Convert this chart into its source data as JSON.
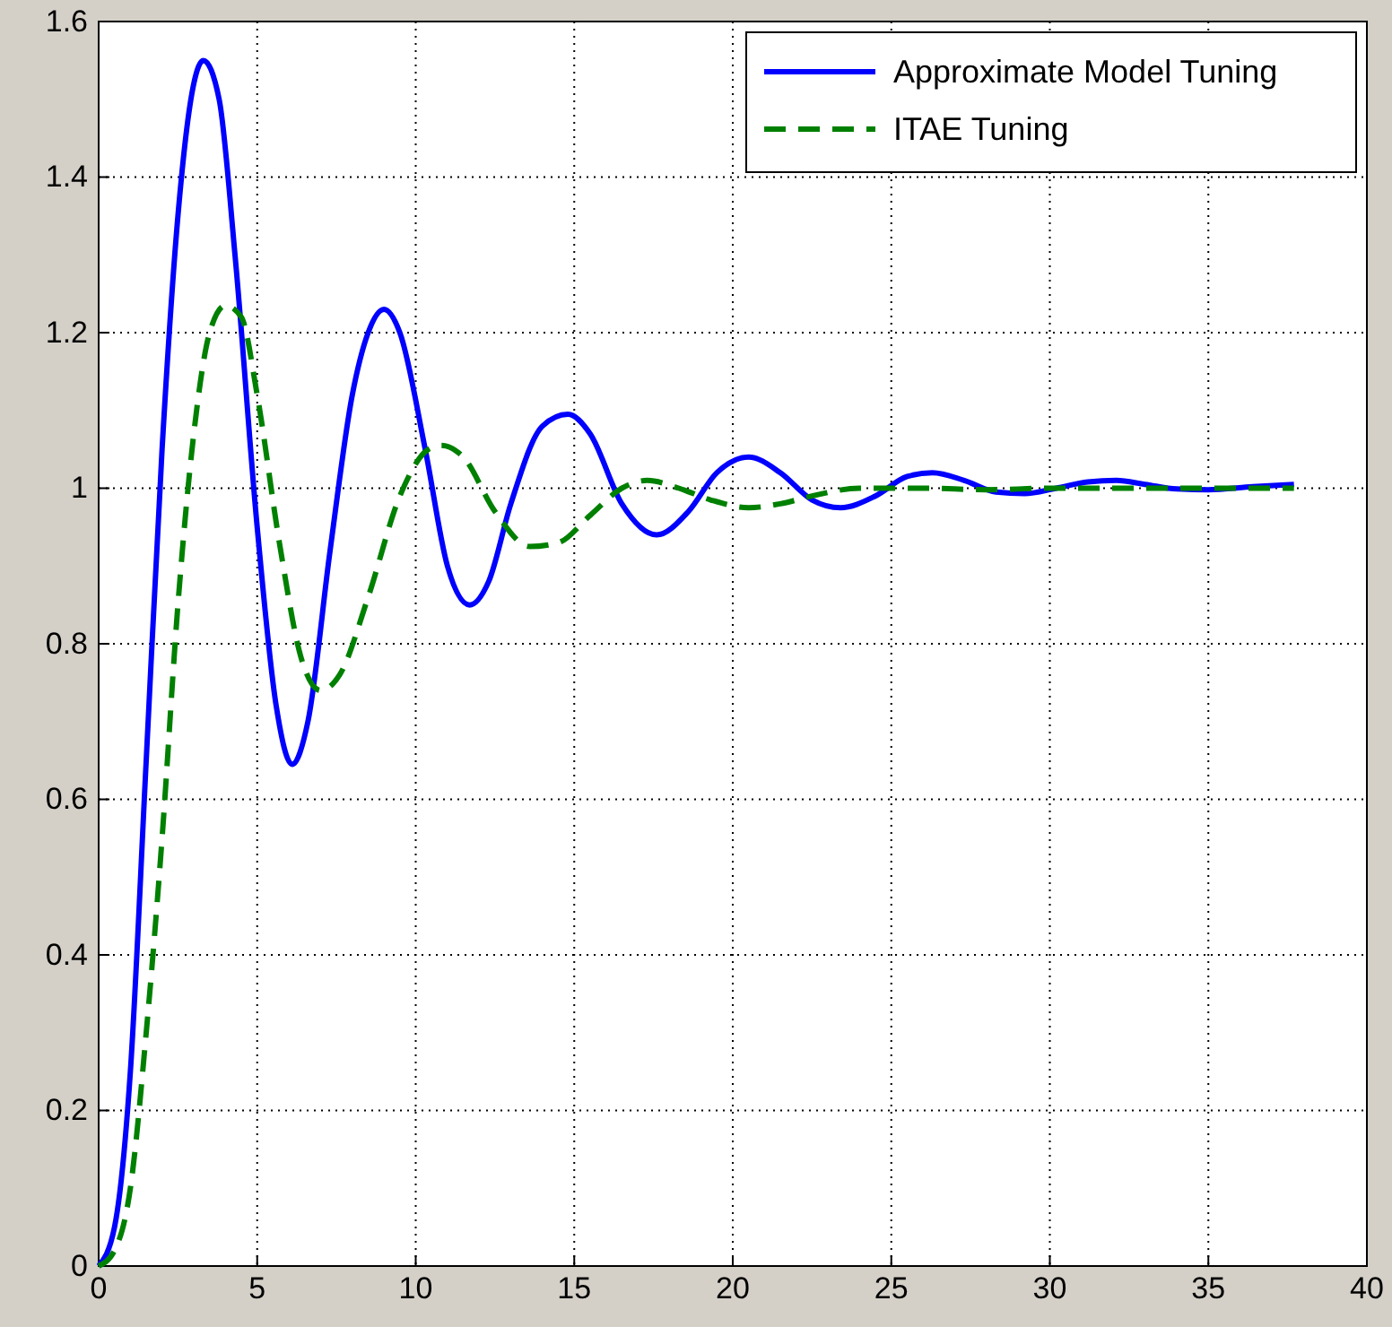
{
  "chart_data": {
    "type": "line",
    "xlim": [
      0,
      40
    ],
    "xticks": [
      0,
      5,
      10,
      15,
      20,
      25,
      30,
      35,
      40
    ],
    "ylim": [
      0,
      1.6
    ],
    "yticks": [
      0,
      0.2,
      0.4,
      0.6,
      0.8,
      1,
      1.2,
      1.4,
      1.6
    ],
    "grid": true,
    "legend": "top right",
    "series": [
      {
        "name": "Approximate Model Tuning",
        "color": "#0000ff",
        "line_style": "solid",
        "x": [
          0,
          0.5,
          1,
          1.5,
          2,
          2.5,
          3,
          3.3,
          3.8,
          4.3,
          5,
          5.6,
          6.1,
          6.6,
          7.3,
          8,
          8.5,
          9,
          9.5,
          10.3,
          11,
          11.7,
          12.3,
          13,
          14,
          14.8,
          15.5,
          16.5,
          17.6,
          18.6,
          19.5,
          20.5,
          21.5,
          22.5,
          23.4,
          24.5,
          25.5,
          26.3,
          27.3,
          28.3,
          29.2,
          30.2,
          31.2,
          32.1,
          33,
          34,
          35,
          36.4,
          37.7
        ],
        "values": [
          0,
          0.05,
          0.25,
          0.65,
          1.05,
          1.35,
          1.52,
          1.55,
          1.5,
          1.3,
          0.95,
          0.72,
          0.645,
          0.7,
          0.92,
          1.12,
          1.2,
          1.23,
          1.2,
          1.05,
          0.9,
          0.85,
          0.88,
          0.98,
          1.08,
          1.095,
          1.07,
          0.98,
          0.94,
          0.97,
          1.02,
          1.04,
          1.02,
          0.985,
          0.975,
          0.99,
          1.015,
          1.02,
          1.01,
          0.995,
          0.993,
          1,
          1.008,
          1.01,
          1.005,
          0.999,
          0.998,
          1.002,
          1.005
        ]
      },
      {
        "name": "ITAE Tuning",
        "color": "#008000",
        "line_style": "dashed",
        "x": [
          0,
          0.5,
          1,
          1.5,
          2,
          2.5,
          3,
          3.5,
          4,
          4.5,
          5,
          5.7,
          6.4,
          7,
          7.6,
          8.5,
          9.5,
          10.4,
          10.8,
          11.5,
          12.5,
          13.6,
          14.5,
          15.5,
          16.5,
          17.3,
          18.3,
          19.3,
          20.5,
          21.5,
          22.5,
          24,
          26,
          28,
          30,
          33,
          37.7
        ],
        "values": [
          0,
          0.02,
          0.1,
          0.3,
          0.55,
          0.85,
          1.07,
          1.2,
          1.235,
          1.22,
          1.12,
          0.93,
          0.78,
          0.74,
          0.76,
          0.86,
          0.99,
          1.05,
          1.055,
          1.04,
          0.97,
          0.925,
          0.93,
          0.965,
          1,
          1.01,
          1,
          0.985,
          0.975,
          0.98,
          0.99,
          1,
          1,
          0.998,
          1,
          1,
          1
        ]
      }
    ]
  }
}
